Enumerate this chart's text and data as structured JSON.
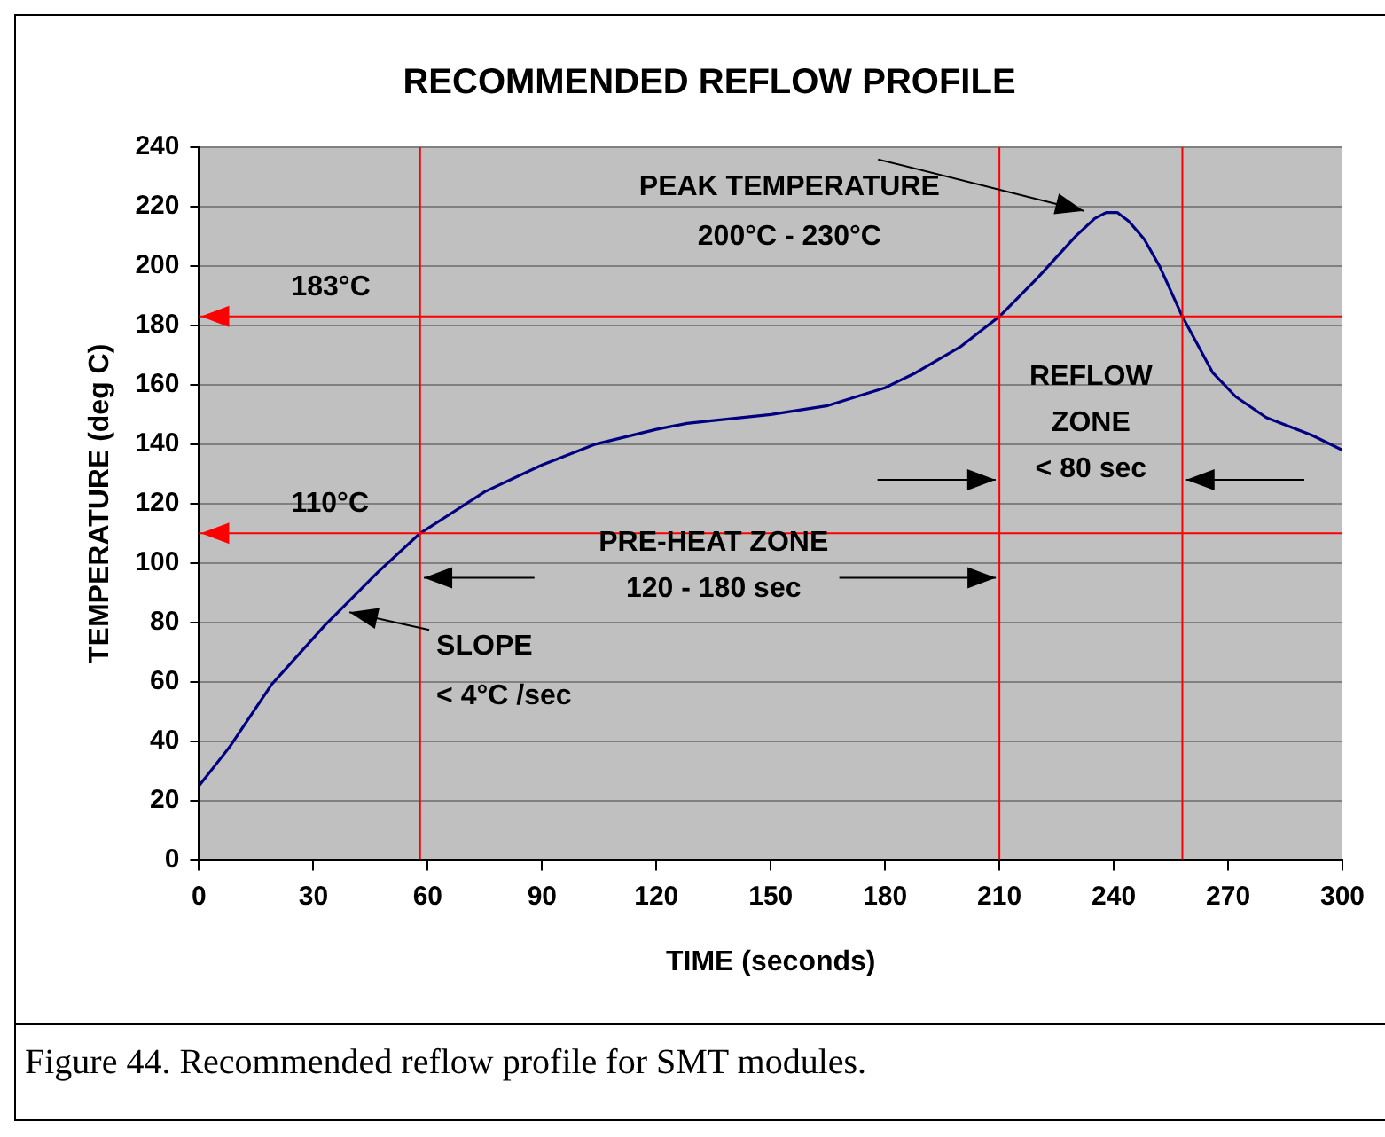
{
  "chart_data": {
    "type": "line",
    "title": "RECOMMENDED REFLOW PROFILE",
    "xlabel": "TIME (seconds)",
    "ylabel": "TEMPERATURE (deg C)",
    "x": [
      0,
      8,
      19,
      33,
      47,
      58,
      75,
      90,
      104,
      120,
      128,
      135,
      150,
      165,
      180,
      188,
      200,
      210,
      220,
      230,
      235,
      238,
      241,
      244,
      248,
      252,
      258,
      266,
      272,
      280,
      292,
      300
    ],
    "series": [
      {
        "color": "#000080",
        "values": [
          25,
          38,
          59,
          79,
          97,
          110,
          124,
          133,
          140,
          145,
          147,
          148,
          150,
          153,
          159,
          164,
          173,
          183,
          196,
          210,
          216,
          218,
          218,
          215,
          209,
          200,
          183,
          164,
          156,
          149,
          143,
          138
        ]
      }
    ],
    "xlim": [
      0,
      300
    ],
    "xticks": [
      0,
      30,
      60,
      90,
      120,
      150,
      180,
      210,
      240,
      270,
      300
    ],
    "ylim": [
      0,
      240
    ],
    "yticks": [
      0,
      20,
      40,
      60,
      80,
      100,
      120,
      140,
      160,
      180,
      200,
      220,
      240
    ],
    "grid": "y",
    "legend": false,
    "marker": "none",
    "line_style": "solid",
    "ref_lines": [
      {
        "axis": "y",
        "value": 183,
        "label": "183°C",
        "color": "#ff0000"
      },
      {
        "axis": "y",
        "value": 110,
        "label": "110°C",
        "color": "#ff0000"
      },
      {
        "axis": "x",
        "value": 58,
        "color": "#ff0000"
      },
      {
        "axis": "x",
        "value": 210,
        "color": "#ff0000"
      },
      {
        "axis": "x",
        "value": 258,
        "color": "#ff0000"
      }
    ],
    "annotations": [
      {
        "text": "PEAK TEMPERATURE\n200°C - 230°C",
        "x": 234,
        "y": 218
      },
      {
        "text": "SLOPE\n< 4°C /sec",
        "x": 39,
        "y": 84
      },
      {
        "text": "PRE-HEAT ZONE\n120 - 180 sec",
        "x": 210,
        "y": 95
      },
      "REFLOW\nZONE\n< 80 sec",
      "Figure 44. Recommended reflow profile for SMT modules."
    ]
  }
}
